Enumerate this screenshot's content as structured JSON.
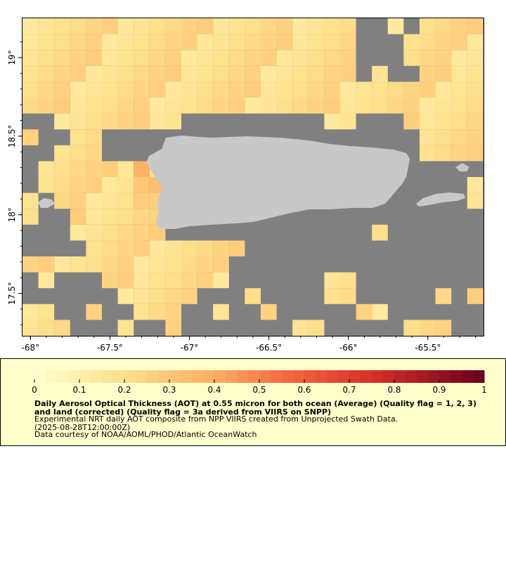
{
  "map": {
    "lon_ticks": [
      {
        "value": -68,
        "label": "-68°"
      },
      {
        "value": -67.5,
        "label": "-67.5°"
      },
      {
        "value": -67,
        "label": "-67°"
      },
      {
        "value": -66.5,
        "label": "-66.5°"
      },
      {
        "value": -66,
        "label": "-66°"
      },
      {
        "value": -65.5,
        "label": "-65.5°"
      }
    ],
    "lat_ticks": [
      {
        "value": 19,
        "label": "19°"
      },
      {
        "value": 18.5,
        "label": "18.5°"
      },
      {
        "value": 18,
        "label": "18°"
      },
      {
        "value": 17.5,
        "label": "17.5°"
      }
    ],
    "lon_range": [
      -68.05,
      -65.15
    ],
    "lat_range": [
      17.23,
      19.25
    ],
    "colors": {
      "no_data": "#808080",
      "land": "#c8c8c8",
      "frame": "#000000"
    }
  },
  "legend": {
    "tick_labels": [
      "0",
      "0.1",
      "0.2",
      "0.3",
      "0.4",
      "0.5",
      "0.6",
      "0.7",
      "0.8",
      "0.9",
      "1"
    ],
    "range": [
      0,
      1
    ],
    "title": "Daily Aerosol Optical Thickness (AOT) at 0.55 micron for both ocean (Average) (Quality flag = 1, 2, 3) and land (corrected) (Quality flag = 3a derived from VIIRS on SNPP)",
    "description": "Experimental NRT daily AOT composite from NPP VIIRS created from Unprojected Swath Data.",
    "date": "(2025-08-28T12:00:00Z)",
    "credit": "Data courtesy of NOAA/AOML/PHOD/Atlantic OceanWatch"
  }
}
